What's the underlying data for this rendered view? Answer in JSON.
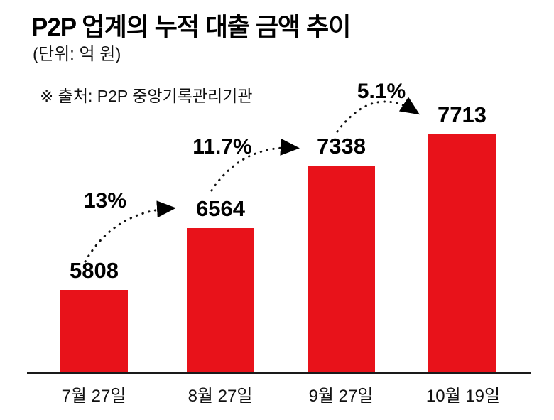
{
  "chart_data": {
    "type": "bar",
    "title": "P2P 업계의 누적 대출 금액 추이",
    "unit_label": "(단위: 억 원)",
    "source": "※ 출처: P2P 중앙기록관리기관",
    "categories": [
      "7월 27일",
      "8월 27일",
      "9월 27일",
      "10월 19일"
    ],
    "values": [
      5808,
      6564,
      7338,
      7713
    ],
    "growth_labels": [
      "13%",
      "11.7%",
      "5.1%"
    ],
    "bar_color": "#e8121a",
    "text_color": "#000000",
    "ylim": [
      4800,
      7900
    ],
    "grid": false,
    "legend": false,
    "xlabel": "",
    "ylabel": ""
  }
}
